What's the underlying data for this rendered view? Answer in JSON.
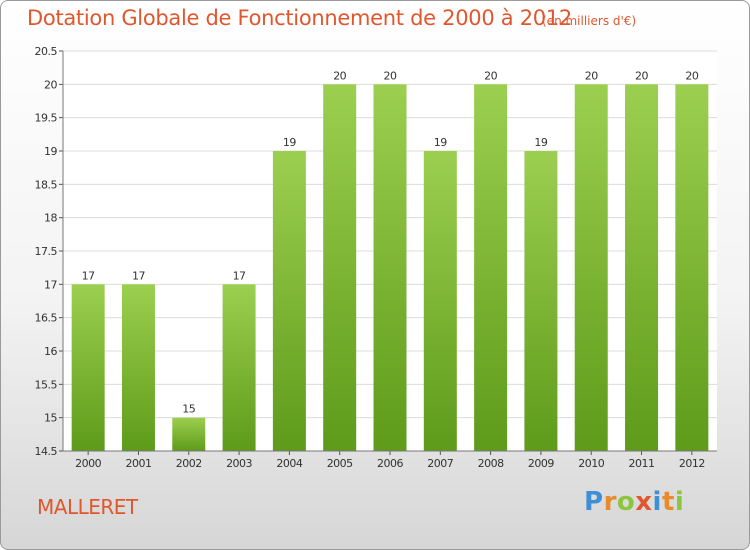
{
  "title": "Dotation Globale de Fonctionnement de 2000 à 2012",
  "unit_note": "(en milliers d'€)",
  "commune": "MALLERET",
  "logo": "Proxiti",
  "colors": {
    "accent": "#e0572e",
    "bar_top": "#9ccf4f",
    "bar_bottom": "#5e9b1a"
  },
  "chart_data": {
    "type": "bar",
    "title": "Dotation Globale de Fonctionnement de 2000 à 2012",
    "categories": [
      "2000",
      "2001",
      "2002",
      "2003",
      "2004",
      "2005",
      "2006",
      "2007",
      "2008",
      "2009",
      "2010",
      "2011",
      "2012"
    ],
    "values": [
      17,
      17,
      15,
      17,
      19,
      20,
      20,
      19,
      20,
      19,
      20,
      20,
      20
    ],
    "data_labels": [
      "17",
      "17",
      "15",
      "17",
      "19",
      "20",
      "20",
      "19",
      "20",
      "19",
      "20",
      "20",
      "20"
    ],
    "ylim": [
      14.5,
      20.5
    ],
    "yticks": [
      "14.5",
      "15",
      "15.5",
      "16",
      "16.5",
      "17",
      "17.5",
      "18",
      "18.5",
      "19",
      "19.5",
      "20",
      "20.5"
    ],
    "xlabel": "",
    "ylabel": "",
    "grid": true,
    "legend": "none"
  }
}
